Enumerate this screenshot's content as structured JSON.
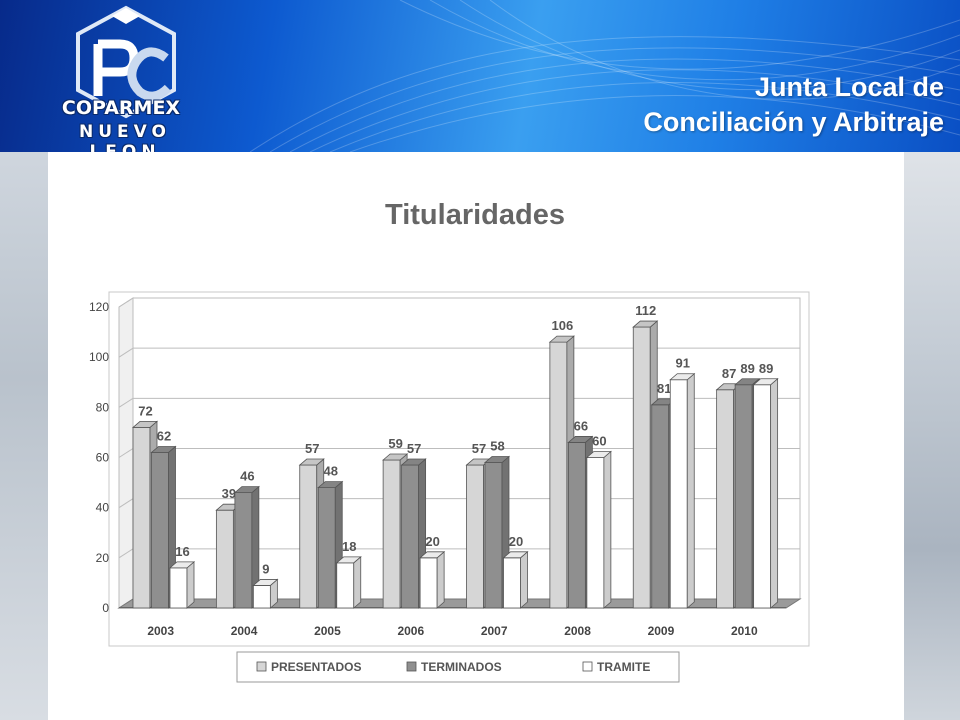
{
  "header": {
    "title_line1": "Junta Local de",
    "title_line2": "Conciliación y Arbitraje",
    "logo_text": "COPARMEX",
    "logo_subtext": "NUEVO LEON"
  },
  "colors": {
    "header_blue": "#0d5ad0",
    "presentados": "#d6d6d6",
    "terminados": "#8f8f8f",
    "tramite": "#ffffff"
  },
  "chart_data": {
    "type": "bar",
    "title": "Titularidades",
    "categories": [
      "2003",
      "2004",
      "2005",
      "2006",
      "2007",
      "2008",
      "2009",
      "2010"
    ],
    "series": [
      {
        "name": "PRESENTADOS",
        "values": [
          72,
          39,
          57,
          59,
          57,
          106,
          112,
          87
        ]
      },
      {
        "name": "TERMINADOS",
        "values": [
          62,
          46,
          48,
          57,
          58,
          66,
          81,
          89
        ]
      },
      {
        "name": "TRAMITE",
        "values": [
          16,
          9,
          18,
          20,
          20,
          60,
          91,
          89
        ]
      }
    ],
    "ylim": [
      0,
      120
    ],
    "yticks": [
      "0",
      "20",
      "40",
      "60",
      "80",
      "100",
      "120"
    ],
    "grid": true,
    "legend_position": "bottom"
  }
}
